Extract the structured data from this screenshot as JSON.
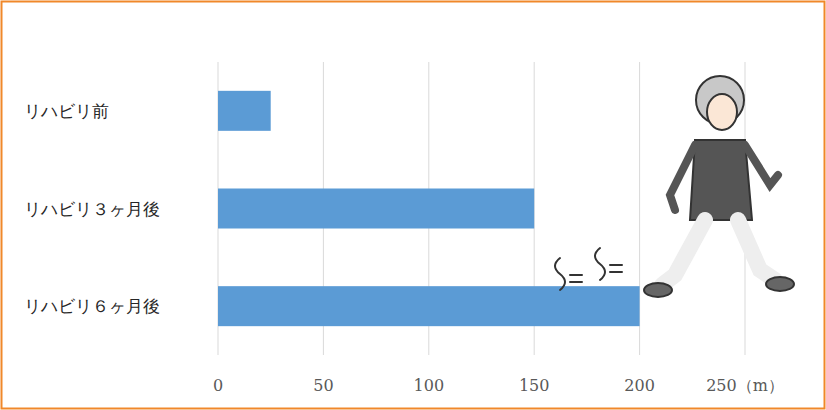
{
  "chart_data": {
    "type": "bar",
    "orientation": "horizontal",
    "categories": [
      "リハビリ前",
      "リハビリ３ヶ月後",
      "リハビリ６ヶ月後"
    ],
    "values": [
      25,
      150,
      200
    ],
    "color": "#5b9bd5",
    "xlim": [
      0,
      250
    ],
    "xticks": [
      0,
      50,
      100,
      150,
      200,
      {
        "value": 250,
        "label": "250（m）"
      }
    ],
    "grid": true
  }
}
